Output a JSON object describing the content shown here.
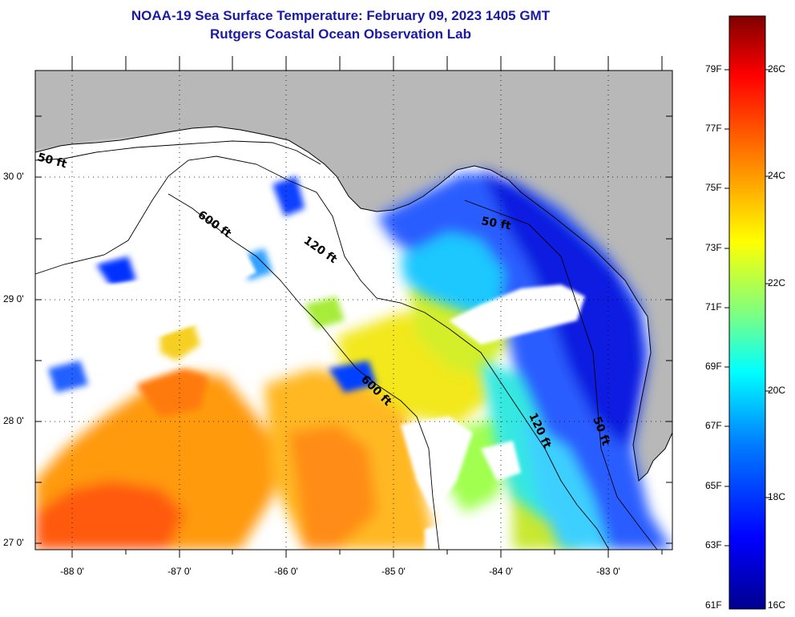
{
  "header": {
    "title_line1": "NOAA-19 Sea Surface Temperature:  February 09, 2023 1405 GMT",
    "title_line2": "Rutgers Coastal Ocean Observation Lab"
  },
  "map": {
    "lat_labels": [
      "30 0'",
      "29 0'",
      "28 0'",
      "27 0'"
    ],
    "lon_labels": [
      "-88 0'",
      "-87 0'",
      "-86 0'",
      "-85 0'",
      "-84 0'",
      "-83 0'"
    ],
    "contour_labels": {
      "c50_west": "50 ft",
      "c600_north": "600 ft",
      "c120_north": "120 ft",
      "c50_east": "50 ft",
      "c600_south": "600 ft",
      "c120_south": "120 ft",
      "c50_south": "50 ft"
    },
    "colors": {
      "land": "#b8b8b8",
      "cloud": "#ffffff",
      "coastline": "#000000"
    }
  },
  "colorbar": {
    "fahrenheit": [
      "79F",
      "77F",
      "75F",
      "73F",
      "71F",
      "69F",
      "67F",
      "65F",
      "63F",
      "61F"
    ],
    "celsius": [
      "26C",
      "24C",
      "22C",
      "20C",
      "18C",
      "16C"
    ],
    "gradient": [
      "#00008f",
      "#0000ff",
      "#007fff",
      "#00ffff",
      "#7fff7f",
      "#ffff00",
      "#ff7f00",
      "#ff0000",
      "#7f0000"
    ]
  }
}
